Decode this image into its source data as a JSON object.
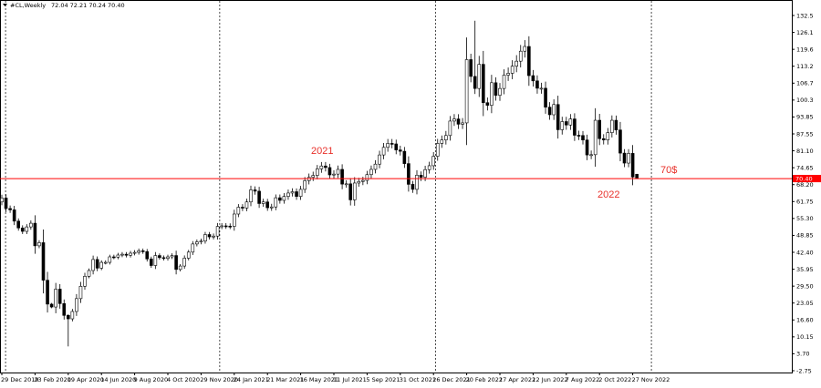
{
  "header": {
    "symbol": "#CL,Weekly",
    "ohlc": "72.04 72.21 70.24 70.40"
  },
  "chart_data": {
    "type": "candlestick",
    "timeframe": "Weekly",
    "first_week": "29 Dec 2019",
    "y_ticks": [
      "132.5",
      "126.1",
      "119.6",
      "113.2",
      "106.7",
      "100.3",
      "93.85",
      "87.55",
      "81.10",
      "74.65",
      "68.20",
      "61.75",
      "55.30",
      "48.85",
      "42.40",
      "35.95",
      "29.50",
      "23.05",
      "16.60",
      "10.15",
      "3.70",
      "-2.75"
    ],
    "ylim": [
      -2.75,
      132.5
    ],
    "x_ticks": [
      "29 Dec 2019",
      "23 Feb 2020",
      "19 Apr 2020",
      "14 Jun 2020",
      "9 Aug 2020",
      "4 Oct 2020",
      "29 Nov 2020",
      "24 Jan 2021",
      "21 Mar 2021",
      "16 May 2021",
      "11 Jul 2021",
      "5 Sep 2021",
      "31 Oct 2021",
      "26 Dec 2021",
      "20 Feb 2022",
      "17 Apr 2022",
      "12 Jun 2022",
      "7 Aug 2022",
      "2 Oct 2022",
      "27 Nov 2022"
    ],
    "weekly_close": [
      63.0,
      59.0,
      58.5,
      54.2,
      51.6,
      50.3,
      52.0,
      53.4,
      44.8,
      46.0,
      31.7,
      22.6,
      21.5,
      28.3,
      22.8,
      18.3,
      17.0,
      19.8,
      24.7,
      29.4,
      33.2,
      35.4,
      39.6,
      36.3,
      38.5,
      38.5,
      40.6,
      40.5,
      41.3,
      41.6,
      41.2,
      42.0,
      42.3,
      42.9,
      42.6,
      39.8,
      37.3,
      41.1,
      40.3,
      40.0,
      40.6,
      41.1,
      35.8,
      37.1,
      40.1,
      42.4,
      45.5,
      46.3,
      46.6,
      49.1,
      48.2,
      48.5,
      52.2,
      52.4,
      52.3,
      52.2,
      56.9,
      59.5,
      59.2,
      61.5,
      66.1,
      65.6,
      60.9,
      61.5,
      59.3,
      59.6,
      63.1,
      62.1,
      63.6,
      64.9,
      65.4,
      63.6,
      66.3,
      69.6,
      70.9,
      71.6,
      74.1,
      75.2,
      74.6,
      71.8,
      72.1,
      73.9,
      68.3,
      68.4,
      62.3,
      68.7,
      69.3,
      69.7,
      71.9,
      73.9,
      75.9,
      79.4,
      82.3,
      83.8,
      83.6,
      81.3,
      80.8,
      76.1,
      68.2,
      66.3,
      71.7,
      70.9,
      73.8,
      75.3,
      78.9,
      83.8,
      85.1,
      86.8,
      92.3,
      93.1,
      91.1,
      91.6,
      115.7,
      109.3,
      104.7,
      113.9,
      99.3,
      98.3,
      106.9,
      102.1,
      104.7,
      109.8,
      110.5,
      113.2,
      115.1,
      118.9,
      120.7,
      109.6,
      107.6,
      104.8,
      104.8,
      97.6,
      94.7,
      98.6,
      89.0,
      92.1,
      90.8,
      93.1,
      86.9,
      86.8,
      85.1,
      79.4,
      79.5,
      92.6,
      85.6,
      85.1,
      87.9,
      92.6,
      88.9,
      80.1,
      76.3,
      80.0,
      71.0,
      70.4
    ],
    "first_open": 61.5,
    "notable_extremes": [
      {
        "week": "19 Apr 2020",
        "low": 6.5
      },
      {
        "week": "6 Mar 2022",
        "high": 130.5
      }
    ],
    "last_candle": {
      "open": 72.04,
      "high": 72.21,
      "low": 70.24,
      "close": 70.4
    },
    "price_line": {
      "value": 70.4,
      "label": "70.40",
      "color": "#ff0000"
    },
    "year_separators": [
      "2020",
      "2021",
      "2022",
      "2023"
    ],
    "annotations": [
      {
        "text": "2021",
        "color": "#e8302a"
      },
      {
        "text": "2022",
        "color": "#e8302a"
      },
      {
        "text": "70$",
        "color": "#e8302a"
      }
    ],
    "colors": {
      "bull_body": "#ffffff",
      "bear_body": "#000000",
      "outline": "#000000",
      "background": "#ffffff"
    },
    "grid": false
  }
}
